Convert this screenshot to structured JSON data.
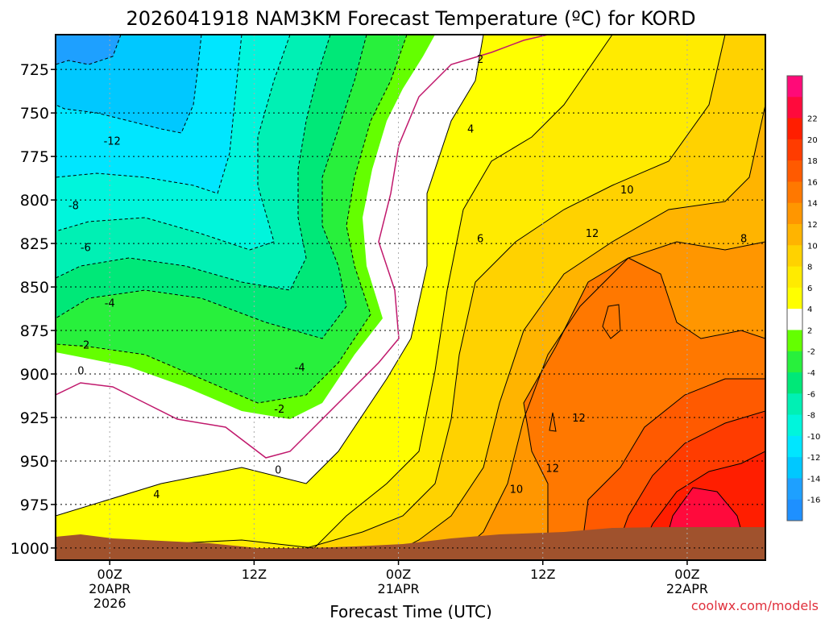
{
  "chart_data": {
    "type": "heatmap",
    "title": "2026041918 NAM3KM Forecast Temperature (ºC) for KORD",
    "xlabel": "Forecast Time (UTC)",
    "ylabel": "",
    "watermark": "coolwx.com/models",
    "x_hours_range": [
      -4.5,
      54.5
    ],
    "y_range_hpa": [
      705,
      1007
    ],
    "y_ticks": [
      {
        "v": 725,
        "label": "725"
      },
      {
        "v": 750,
        "label": "750"
      },
      {
        "v": 775,
        "label": "775"
      },
      {
        "v": 800,
        "label": "800"
      },
      {
        "v": 825,
        "label": "825"
      },
      {
        "v": 850,
        "label": "850"
      },
      {
        "v": 875,
        "label": "875"
      },
      {
        "v": 900,
        "label": "900"
      },
      {
        "v": 925,
        "label": "925"
      },
      {
        "v": 950,
        "label": "950"
      },
      {
        "v": 975,
        "label": "975"
      },
      {
        "v": 1000,
        "label": "1000"
      }
    ],
    "x_ticks": [
      {
        "h": 0,
        "lines": [
          "00Z",
          "20APR",
          "2026"
        ]
      },
      {
        "h": 12,
        "lines": [
          "12Z"
        ]
      },
      {
        "h": 24,
        "lines": [
          "00Z",
          "21APR"
        ]
      },
      {
        "h": 36,
        "lines": [
          "12Z"
        ]
      },
      {
        "h": 48,
        "lines": [
          "00Z",
          "22APR"
        ]
      }
    ],
    "colorbar": [
      {
        "label": "",
        "color": "#1e90ff"
      },
      {
        "label": "-16",
        "color": "#1ea0ff"
      },
      {
        "label": "-14",
        "color": "#00c8ff"
      },
      {
        "label": "-12",
        "color": "#00e6ff"
      },
      {
        "label": "-10",
        "color": "#00f5dc"
      },
      {
        "label": "-8",
        "color": "#00f0b4"
      },
      {
        "label": "-6",
        "color": "#00e878"
      },
      {
        "label": "-4",
        "color": "#28f03c"
      },
      {
        "label": "-2",
        "color": "#64ff00"
      },
      {
        "label": "2",
        "color": "#ffffff"
      },
      {
        "label": "4",
        "color": "#ffff00"
      },
      {
        "label": "6",
        "color": "#ffeb00"
      },
      {
        "label": "8",
        "color": "#ffd200"
      },
      {
        "label": "10",
        "color": "#ffb400"
      },
      {
        "label": "12",
        "color": "#ff9600"
      },
      {
        "label": "14",
        "color": "#ff7800"
      },
      {
        "label": "16",
        "color": "#ff5a00"
      },
      {
        "label": "18",
        "color": "#ff3c00"
      },
      {
        "label": "20",
        "color": "#ff1e00"
      },
      {
        "label": "22",
        "color": "#ff0a3c"
      },
      {
        "label": "",
        "color": "#ff0a78"
      }
    ],
    "contour_labels": [
      {
        "text": "-12",
        "h": 0.2,
        "p": 766
      },
      {
        "text": "-8",
        "h": -3,
        "p": 803
      },
      {
        "text": "-6",
        "h": -2,
        "p": 827
      },
      {
        "text": "-4",
        "h": 0,
        "p": 859
      },
      {
        "text": "-2",
        "h": -2.1,
        "p": 883
      },
      {
        "text": "0",
        "h": -2.4,
        "p": 898
      },
      {
        "text": "-4",
        "h": 15.8,
        "p": 896
      },
      {
        "text": "-2",
        "h": 14.1,
        "p": 920
      },
      {
        "text": "0",
        "h": 14,
        "p": 955
      },
      {
        "text": "4",
        "h": 3.9,
        "p": 969
      },
      {
        "text": "2",
        "h": 30.8,
        "p": 719
      },
      {
        "text": "4",
        "h": 30,
        "p": 759
      },
      {
        "text": "6",
        "h": 30.8,
        "p": 822
      },
      {
        "text": "10",
        "h": 43,
        "p": 794
      },
      {
        "text": "12",
        "h": 40.1,
        "p": 819
      },
      {
        "text": "12",
        "h": 39,
        "p": 925
      },
      {
        "text": "12",
        "h": 36.8,
        "p": 954
      },
      {
        "text": "10",
        "h": 33.8,
        "p": 966
      },
      {
        "text": "8",
        "h": 52.7,
        "p": 822
      }
    ],
    "zones": [
      {
        "color": "#ffffff",
        "value": "0 to 2"
      },
      {
        "color": "#ffff00",
        "value": "2 to 4"
      },
      {
        "color": "#ffeb00",
        "value": "4 to 6"
      },
      {
        "color": "#ffd200",
        "value": "6 to 8"
      },
      {
        "color": "#ffb400",
        "value": "8 to 10"
      },
      {
        "color": "#ff9600",
        "value": "10 to 12"
      },
      {
        "color": "#ff7800",
        "value": "12 to 14"
      },
      {
        "color": "#ff5a00",
        "value": "14 to 16"
      },
      {
        "color": "#ff3c00",
        "value": "16 to 18"
      },
      {
        "color": "#ff1e00",
        "value": "18 to 20"
      },
      {
        "color": "#ff0a3c",
        "value": "20 to 22"
      },
      {
        "color": "#64ff00",
        "value": "-2 to 0"
      },
      {
        "color": "#28f03c",
        "value": "-4 to -2"
      },
      {
        "color": "#00e878",
        "value": "-6 to -4"
      },
      {
        "color": "#00f0b4",
        "value": "-8 to -6"
      },
      {
        "color": "#00f5dc",
        "value": "-10 to -8"
      },
      {
        "color": "#00e6ff",
        "value": "-12 to -10"
      },
      {
        "color": "#00c8ff",
        "value": "-14 to -12"
      },
      {
        "color": "#1ea0ff",
        "value": "-16 to -14"
      },
      {
        "color": "#1e90ff",
        "value": "< -16"
      }
    ],
    "terrain_color": "#a0522d",
    "grid": true
  }
}
